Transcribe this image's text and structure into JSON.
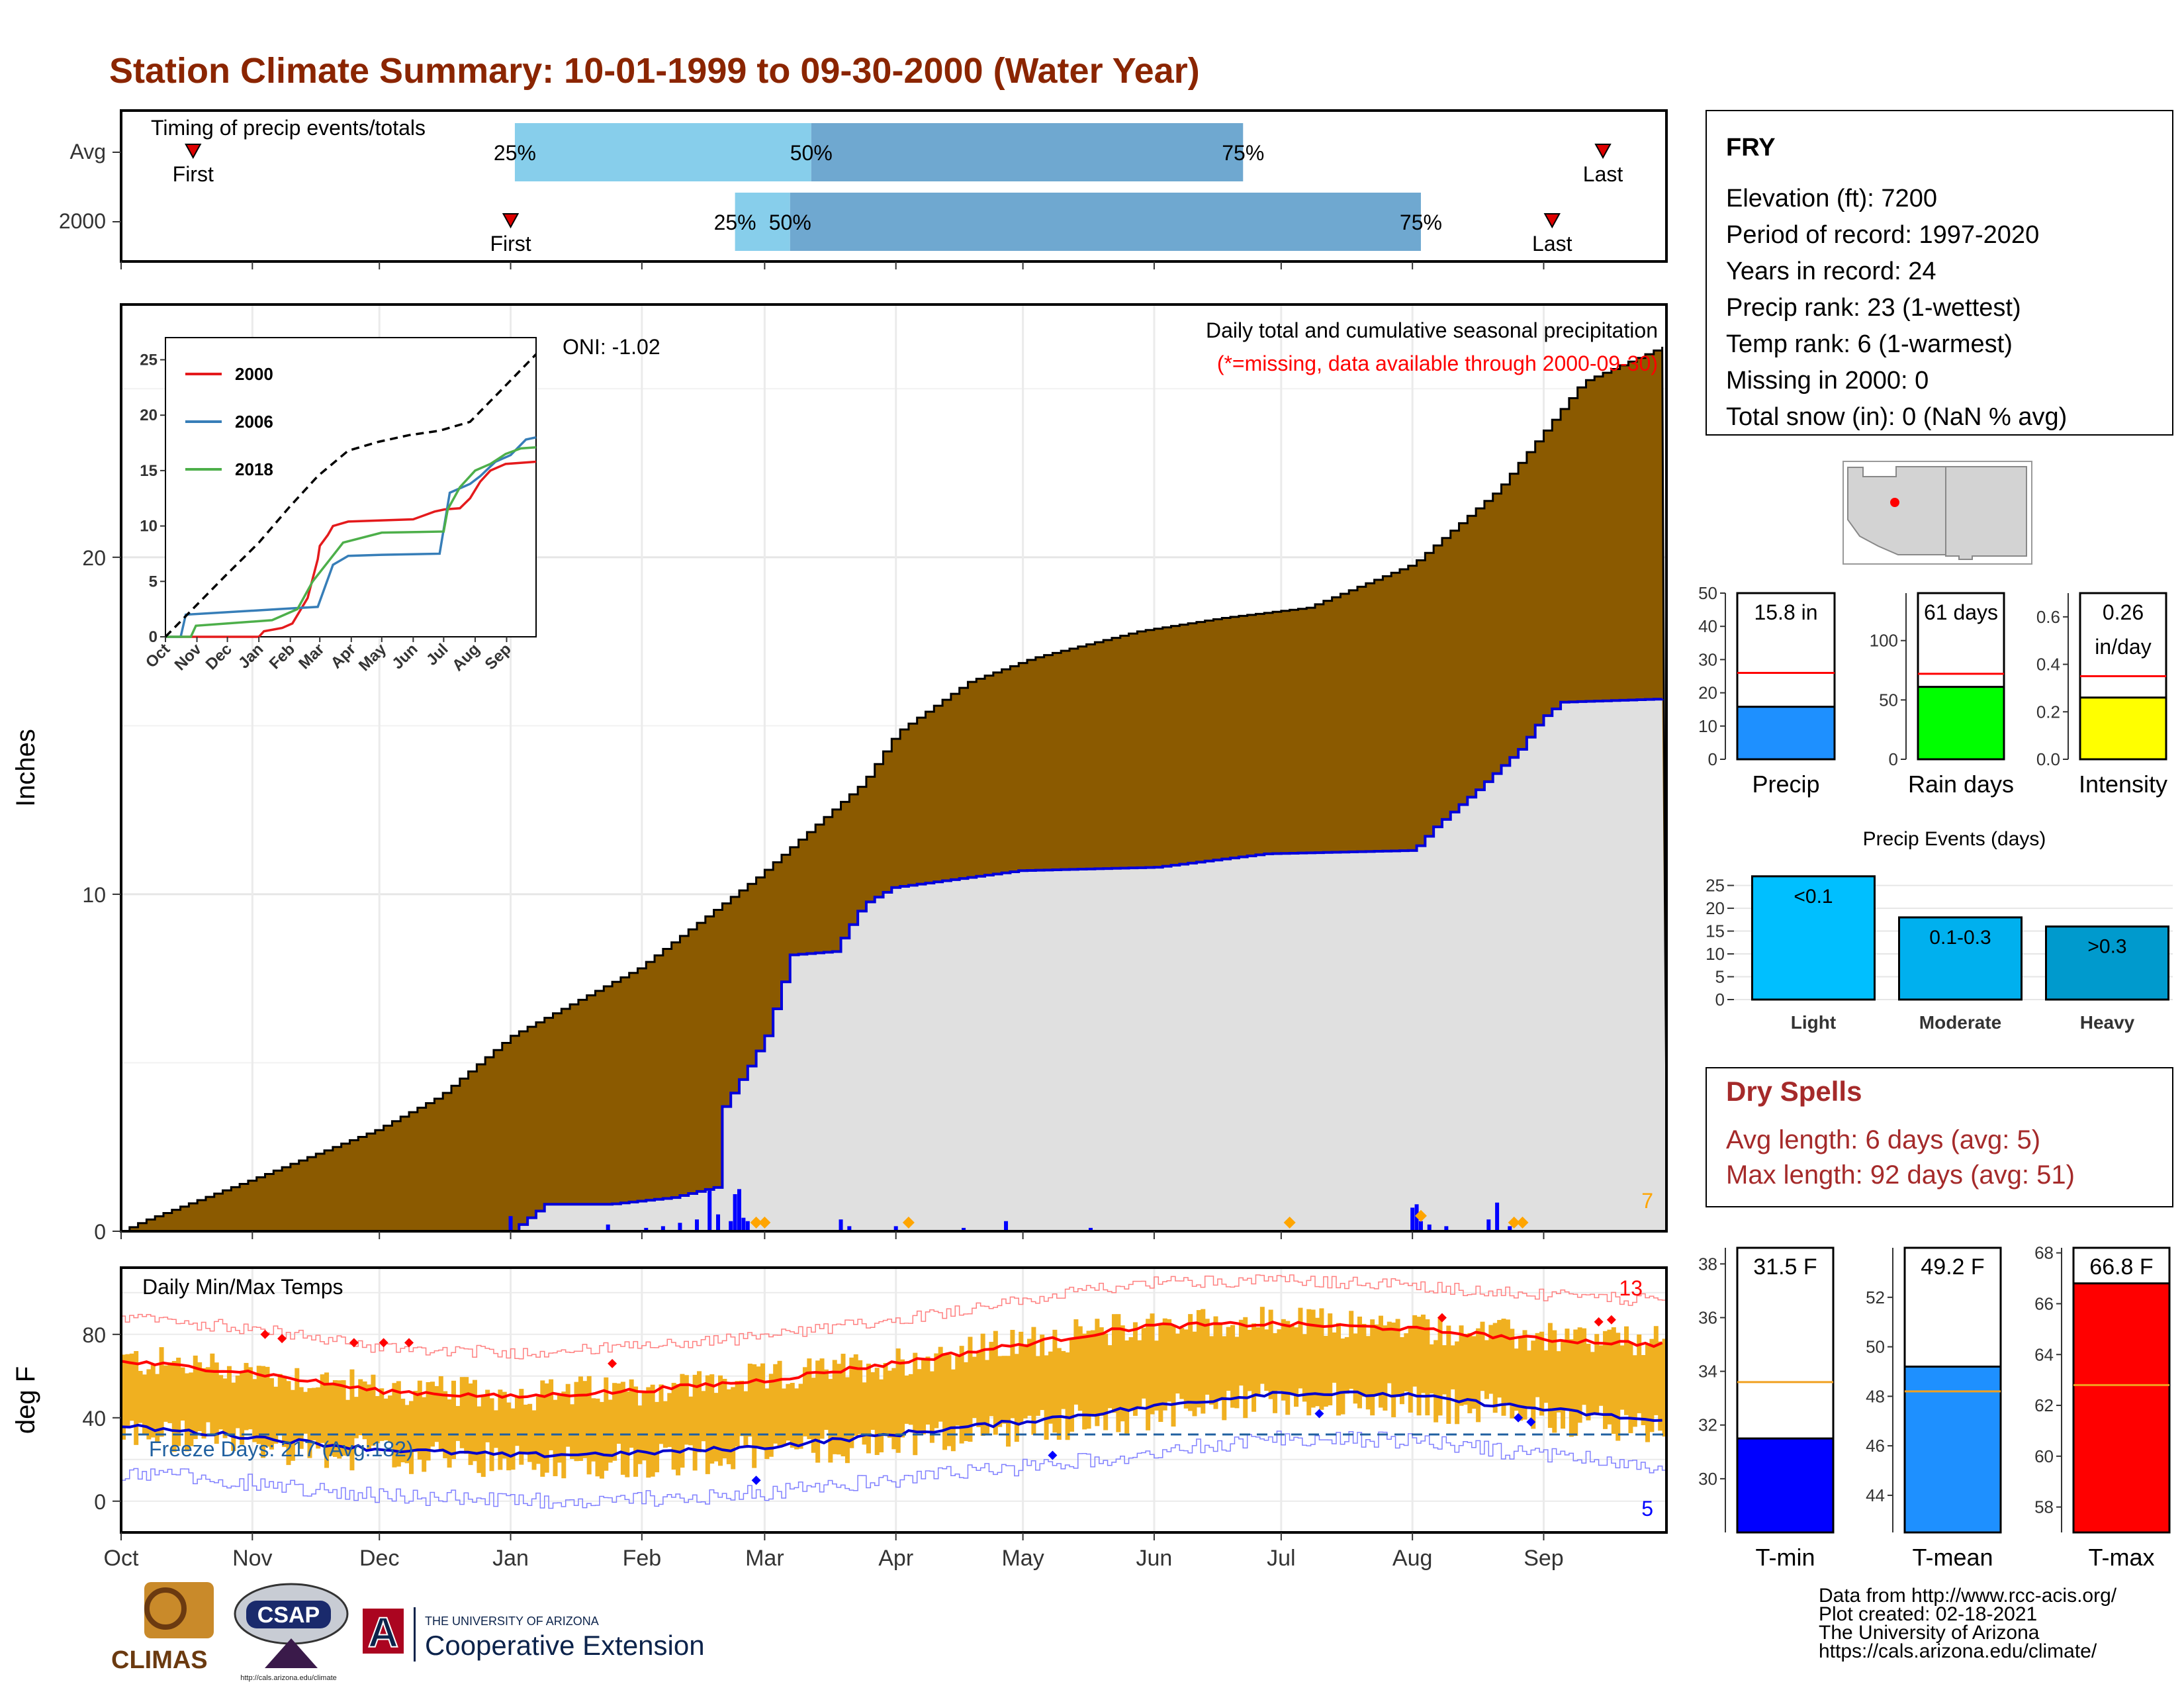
{
  "title": "Station Climate Summary: 10-01-1999 to 09-30-2000 (Water Year)",
  "colors": {
    "title": "#8b2500",
    "cumulative_fill": "#8b5a00",
    "baseline_fill": "#e0e0e0",
    "baseline_line": "#0000dd",
    "daily_bars": "#0000ff",
    "temp_range": "#f0b020",
    "tmax_avg": "#ff0000",
    "tmin_avg": "#0000cc",
    "extreme_marker": "#ffa500",
    "freeze_line": "#2060a0",
    "timing_q1": "#87ceeb",
    "timing_q2": "#6fa8d0",
    "first_last": "#dd0000",
    "dry_spell": "#a52a2a",
    "bar_precip": "#1e90ff",
    "bar_raindays": "#00ff00",
    "bar_intensity": "#ffff00",
    "bar_tmin": "#0000ff",
    "bar_tmean": "#1e90ff",
    "bar_tmax": "#ff0000",
    "ev_light": "#00bfff",
    "ev_moderate": "#00b0ee",
    "ev_heavy": "#009acd"
  },
  "timing": {
    "panel_label": "Timing of precip events/totals",
    "rows": [
      {
        "label": "Avg",
        "first": "First",
        "last": "Last",
        "q25": "25%",
        "q50": "50%",
        "q75": "75%",
        "first_day": 17,
        "q25_day": 93,
        "q50_day": 163,
        "q75_day": 265,
        "last_day": 350
      },
      {
        "label": "2000",
        "first": "First",
        "last": "Last",
        "q25": "25%",
        "q50": "50%",
        "q75": "75%",
        "first_day": 92,
        "q25_day": 145,
        "q50_day": 158,
        "q75_day": 307,
        "last_day": 338
      }
    ]
  },
  "chart_data": [
    {
      "type": "area",
      "title": "Daily total and cumulative seasonal precipitation",
      "subtitle": "(*=missing, data available through 2000-09-30)",
      "ylabel": "Inches",
      "ylim": [
        0,
        27.5
      ],
      "yticks": [
        "0",
        "10",
        "20"
      ],
      "months": [
        "Oct",
        "Nov",
        "Dec",
        "Jan",
        "Feb",
        "Mar",
        "Apr",
        "May",
        "Jun",
        "Jul",
        "Aug",
        "Sep"
      ],
      "oni_label": "ONI: -1.02",
      "extreme_count": "7",
      "series": [
        {
          "name": "cumulative average",
          "x_day": [
            0,
            5,
            30,
            60,
            75,
            92,
            122,
            150,
            175,
            183,
            200,
            215,
            240,
            260,
            280,
            305,
            325,
            345,
            365
          ],
          "values": [
            0,
            0.3,
            1.5,
            3.0,
            4.0,
            5.8,
            7.8,
            10.5,
            13.3,
            14.8,
            16.3,
            17.0,
            17.8,
            18.2,
            18.5,
            19.8,
            22.0,
            25.2,
            26.3
          ]
        },
        {
          "name": "cumulative 2000",
          "x_day": [
            0,
            92,
            100,
            115,
            130,
            140,
            141,
            148,
            152,
            158,
            168,
            175,
            182,
            212,
            244,
            270,
            305,
            310,
            320,
            330,
            335,
            340,
            365
          ],
          "values": [
            0,
            0,
            0.8,
            0.8,
            1.0,
            1.3,
            3.5,
            4.9,
            5.8,
            8.2,
            8.3,
            9.7,
            10.2,
            10.7,
            10.8,
            11.2,
            11.3,
            12.0,
            13.1,
            14.3,
            15.2,
            15.7,
            15.8
          ]
        }
      ],
      "daily_bars": {
        "x_day": [
          92,
          115,
          124,
          128,
          132,
          136,
          139,
          141,
          144,
          145,
          146,
          147,
          148,
          170,
          172,
          183,
          199,
          209,
          229,
          305,
          306,
          307,
          309,
          313,
          323,
          325,
          328
        ],
        "values": [
          0.45,
          0.2,
          0.1,
          0.15,
          0.25,
          0.35,
          1.2,
          0.5,
          0.3,
          1.1,
          1.25,
          0.4,
          0.3,
          0.35,
          0.15,
          0.15,
          0.1,
          0.3,
          0.1,
          0.7,
          0.8,
          0.3,
          0.2,
          0.15,
          0.35,
          0.85,
          0.15
        ]
      },
      "extreme_days": [
        150,
        152,
        186,
        276,
        307,
        329,
        331
      ]
    },
    {
      "type": "line",
      "title": "",
      "ylim": [
        0,
        27
      ],
      "yticks": [
        "0",
        "5",
        "10",
        "15",
        "20",
        "25"
      ],
      "xticks": [
        "Oct",
        "Nov",
        "Dec",
        "Jan",
        "Feb",
        "Mar",
        "Apr",
        "May",
        "Jun",
        "Jul",
        "Aug",
        "Sep"
      ],
      "series": [
        {
          "name": "2000",
          "color": "#e41a1c",
          "x_day": [
            0,
            92,
            97,
            115,
            125,
            140,
            150,
            152,
            160,
            165,
            180,
            244,
            265,
            275,
            290,
            300,
            310,
            320,
            335,
            365
          ],
          "values": [
            0,
            0,
            0.5,
            0.8,
            1.2,
            3.5,
            7.0,
            8.2,
            9.2,
            10.0,
            10.4,
            10.6,
            11.3,
            11.5,
            11.6,
            12.5,
            14.0,
            15.0,
            15.6,
            15.8
          ]
        },
        {
          "name": "2006",
          "color": "#377eb8",
          "x_day": [
            0,
            15,
            20,
            112,
            150,
            165,
            180,
            213,
            270,
            280,
            300,
            310,
            325,
            340,
            355,
            365
          ],
          "values": [
            0,
            0,
            2.0,
            2.5,
            2.7,
            6.5,
            7.3,
            7.4,
            7.5,
            13.0,
            13.8,
            14.5,
            15.8,
            16.4,
            17.8,
            18.0
          ]
        },
        {
          "name": "2018",
          "color": "#4daf4a",
          "x_day": [
            0,
            25,
            30,
            105,
            130,
            145,
            175,
            213,
            274,
            278,
            290,
            305,
            320,
            335,
            350,
            365
          ],
          "values": [
            0,
            0,
            1.0,
            1.5,
            2.5,
            5.0,
            8.5,
            9.4,
            9.5,
            11.5,
            13.5,
            15.0,
            15.6,
            16.5,
            17.0,
            17.1
          ]
        },
        {
          "name": "average",
          "color": "#000000",
          "x_day": [
            0,
            30,
            60,
            92,
            122,
            150,
            180,
            210,
            240,
            270,
            300,
            330,
            365
          ],
          "values": [
            0,
            2.8,
            5.6,
            8.5,
            11.7,
            14.5,
            16.8,
            17.6,
            18.2,
            18.6,
            19.4,
            22.2,
            25.5
          ]
        }
      ]
    },
    {
      "type": "bar",
      "title": "Daily Min/Max Temps",
      "ylabel": "deg F",
      "ylim": [
        -15,
        112
      ],
      "yticks": [
        "0",
        "40",
        "80"
      ],
      "months": [
        "Oct",
        "Nov",
        "Dec",
        "Jan",
        "Feb",
        "Mar",
        "Apr",
        "May",
        "Jun",
        "Jul",
        "Aug",
        "Sep"
      ],
      "freeze_label": "Freeze Days: 217 (Avg:182)",
      "high_count": "13",
      "low_count": "5",
      "freeze_threshold": 32,
      "series": [
        {
          "name": "tmax normal",
          "x_day": [
            0,
            30,
            60,
            92,
            122,
            152,
            182,
            212,
            242,
            272,
            302,
            332,
            365
          ],
          "values": [
            67,
            62,
            53,
            50,
            53,
            58,
            66,
            75,
            84,
            85,
            83,
            78,
            75
          ]
        },
        {
          "name": "tmin normal",
          "x_day": [
            0,
            30,
            60,
            92,
            122,
            152,
            182,
            212,
            242,
            272,
            302,
            332,
            365
          ],
          "values": [
            36,
            31,
            25,
            22,
            23,
            26,
            32,
            38,
            45,
            52,
            51,
            45,
            38
          ]
        }
      ]
    }
  ],
  "station": {
    "name": "FRY",
    "lines": [
      "Elevation (ft): 7200",
      "Period of record: 1997-2020",
      "Years in record: 24",
      "Precip rank: 23 (1-wettest)",
      "Temp rank: 6 (1-warmest)",
      "Missing in 2000: 0",
      "Total snow (in): 0 (NaN % avg)"
    ]
  },
  "mini_bars": [
    {
      "label": "Precip",
      "value_text": "15.8 in",
      "value": 15.8,
      "avg": 26,
      "ymin": 0,
      "ymax": 50,
      "yticks": [
        "0",
        "10",
        "20",
        "30",
        "40",
        "50"
      ],
      "tick_values": [
        0,
        10,
        20,
        30,
        40,
        50
      ],
      "color": "#1e90ff",
      "ref_color": "#ff0000"
    },
    {
      "label": "Rain days",
      "value_text": "61 days",
      "value": 61,
      "avg": 72,
      "ymin": 0,
      "ymax": 140,
      "yticks": [
        "0",
        "50",
        "100"
      ],
      "tick_values": [
        0,
        50,
        100
      ],
      "color": "#00ff00",
      "ref_color": "#ff0000"
    },
    {
      "label": "Intensity",
      "value_text": "0.26\nin/day",
      "value": 0.26,
      "avg": 0.35,
      "ymin": 0,
      "ymax": 0.7,
      "yticks": [
        "0.0",
        "0.2",
        "0.4",
        "0.6"
      ],
      "tick_values": [
        0,
        0.2,
        0.4,
        0.6
      ],
      "color": "#ffff00",
      "ref_color": "#ff0000"
    }
  ],
  "precip_events": {
    "title": "Precip Events (days)",
    "yticks": [
      "0",
      "5",
      "10",
      "15",
      "20",
      "25"
    ],
    "categories": [
      "Light",
      "Moderate",
      "Heavy"
    ],
    "bar_labels": [
      "<0.1",
      "0.1-0.3",
      ">0.3"
    ],
    "values": [
      27,
      18,
      16
    ]
  },
  "dry_spells": {
    "title": "Dry Spells",
    "avg_line": "Avg length: 6 days (avg: 5)",
    "max_line": "Max length: 92 days (avg: 51)"
  },
  "temp_bars": [
    {
      "label": "T-min",
      "value_text": "31.5 F",
      "value": 31.5,
      "avg": 33.6,
      "ymin": 28,
      "ymax": 38.6,
      "yticks": [
        "30",
        "32",
        "34",
        "36",
        "38"
      ],
      "tick_values": [
        30,
        32,
        34,
        36,
        38
      ],
      "color": "#0000ff"
    },
    {
      "label": "T-mean",
      "value_text": "49.2 F",
      "value": 49.2,
      "avg": 48.2,
      "ymin": 42.5,
      "ymax": 54,
      "yticks": [
        "44",
        "46",
        "48",
        "50",
        "52"
      ],
      "tick_values": [
        44,
        46,
        48,
        50,
        52
      ],
      "color": "#1e90ff"
    },
    {
      "label": "T-max",
      "value_text": "66.8 F",
      "value": 66.8,
      "avg": 62.8,
      "ymin": 57,
      "ymax": 68.2,
      "yticks": [
        "58",
        "60",
        "62",
        "64",
        "66",
        "68"
      ],
      "tick_values": [
        58,
        60,
        62,
        64,
        66,
        68
      ],
      "color": "#ff0000"
    }
  ],
  "footer": {
    "lines": [
      "Data from http://www.rcc-acis.org/",
      "Plot created: 02-18-2021",
      "The University of Arizona",
      "https://cals.arizona.edu/climate/"
    ]
  },
  "logos": {
    "climas": "CLIMAS",
    "csap": "CSAP",
    "csap_url": "http://cals.arizona.edu/climate",
    "ua_small": "THE UNIVERSITY OF ARIZONA",
    "ua_big": "Cooperative Extension",
    "ua_letter": "A"
  }
}
